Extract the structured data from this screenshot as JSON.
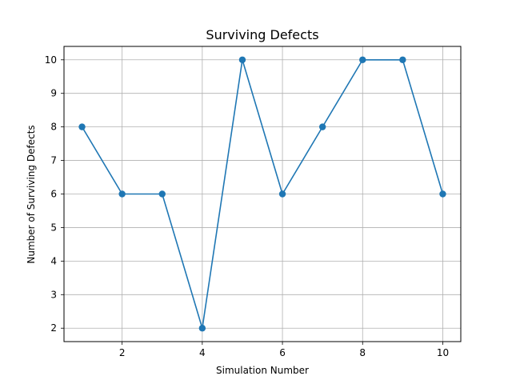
{
  "chart_data": {
    "type": "line",
    "title": "Surviving Defects",
    "xlabel": "Simulation Number",
    "ylabel": "Number of Surviving Defects",
    "x": [
      1,
      2,
      3,
      4,
      5,
      6,
      7,
      8,
      9,
      10
    ],
    "series": [
      {
        "values": [
          8,
          6,
          6,
          2,
          10,
          6,
          8,
          10,
          10,
          6
        ],
        "color": "#1f77b4",
        "marker": "circle"
      }
    ],
    "xlim": [
      0.55,
      10.45
    ],
    "ylim": [
      1.6,
      10.4
    ],
    "xticks": [
      2,
      4,
      6,
      8,
      10
    ],
    "yticks": [
      2,
      3,
      4,
      5,
      6,
      7,
      8,
      9,
      10
    ],
    "grid": true,
    "grid_color": "#b0b0b0",
    "legend": "none"
  }
}
